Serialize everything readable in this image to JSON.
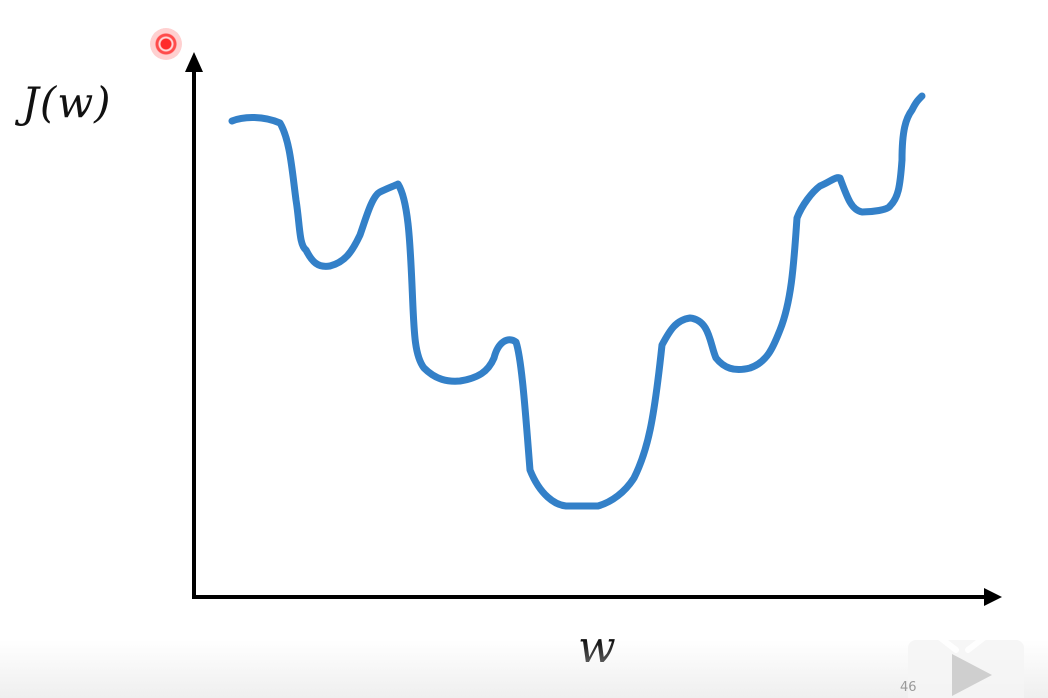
{
  "slide": {
    "ylabel": "J(w)",
    "xlabel": "w",
    "page_number": "46"
  },
  "colors": {
    "curve": "#3380c8",
    "axes": "#000000",
    "laser": "#ff2a2a"
  },
  "icons": {
    "laser": "laser-pointer-icon",
    "play": "play-icon"
  }
}
